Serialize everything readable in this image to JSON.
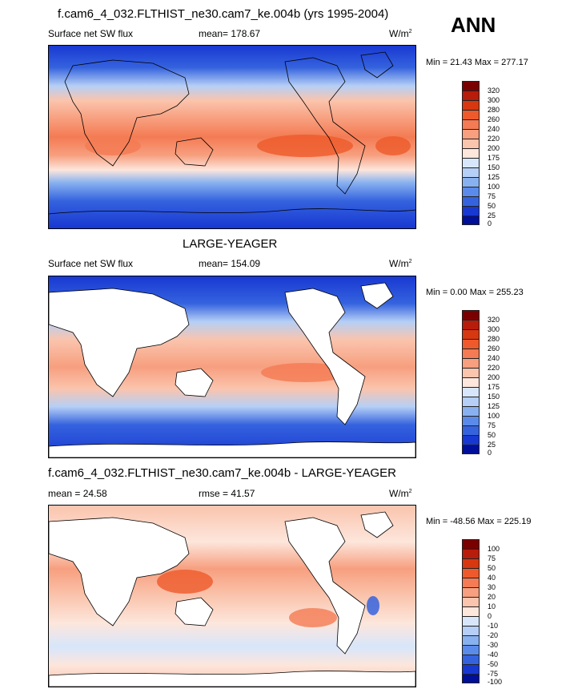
{
  "season": "ANN",
  "chart_data": [
    {
      "type": "heatmap",
      "title": "f.cam6_4_032.FLTHIST_ne30.cam7_ke.004b (yrs 1995-2004)",
      "left_label": "Surface net SW flux",
      "center_label": "mean= 178.67",
      "units": "W/m",
      "units_sup": "2",
      "minmax_text": "Min =  21.43 Max = 277.17",
      "min": 21.43,
      "max": 277.17,
      "mean": 178.67,
      "palette": "blue-white-red",
      "levels": [
        "320",
        "300",
        "280",
        "260",
        "240",
        "220",
        "200",
        "175",
        "150",
        "125",
        "100",
        "75",
        "50",
        "25",
        "0"
      ],
      "colors": [
        "#7a0000",
        "#b81c0a",
        "#d8380f",
        "#ee5a2b",
        "#f47b53",
        "#f79f7f",
        "#fac4ad",
        "#fde6dc",
        "#d7e6fb",
        "#b5cff6",
        "#88b1f0",
        "#5b8bea",
        "#3563de",
        "#1838d2",
        "#000f99"
      ]
    },
    {
      "type": "heatmap",
      "title": "LARGE-YEAGER",
      "left_label": "Surface net SW flux",
      "center_label": "mean= 154.09",
      "units": "W/m",
      "units_sup": "2",
      "minmax_text": "Min =   0.00 Max = 255.23",
      "min": 0.0,
      "max": 255.23,
      "mean": 154.09,
      "palette": "blue-white-red",
      "levels": [
        "320",
        "300",
        "280",
        "260",
        "240",
        "220",
        "200",
        "175",
        "150",
        "125",
        "100",
        "75",
        "50",
        "25",
        "0"
      ],
      "colors": [
        "#7a0000",
        "#b81c0a",
        "#d8380f",
        "#ee5a2b",
        "#f47b53",
        "#f79f7f",
        "#fac4ad",
        "#fde6dc",
        "#d7e6fb",
        "#b5cff6",
        "#88b1f0",
        "#5b8bea",
        "#3563de",
        "#1838d2",
        "#000f99"
      ]
    },
    {
      "type": "heatmap",
      "title": "f.cam6_4_032.FLTHIST_ne30.cam7_ke.004b - LARGE-YEAGER",
      "left_label": "mean =  24.58",
      "center_label": "rmse =  41.57",
      "units": "W/m",
      "units_sup": "2",
      "minmax_text": "Min = -48.56 Max = 225.19",
      "min": -48.56,
      "max": 225.19,
      "mean": 24.58,
      "rmse": 41.57,
      "palette": "blue-white-red",
      "levels": [
        "100",
        "75",
        "50",
        "40",
        "30",
        "20",
        "10",
        "0",
        "-10",
        "-20",
        "-30",
        "-40",
        "-50",
        "-75",
        "-100"
      ],
      "colors": [
        "#7a0000",
        "#b81c0a",
        "#d8380f",
        "#ee5a2b",
        "#f47b53",
        "#f79f7f",
        "#fac4ad",
        "#fde6dc",
        "#d7e6fb",
        "#b5cff6",
        "#88b1f0",
        "#5b8bea",
        "#3563de",
        "#1838d2",
        "#000f99"
      ]
    }
  ]
}
